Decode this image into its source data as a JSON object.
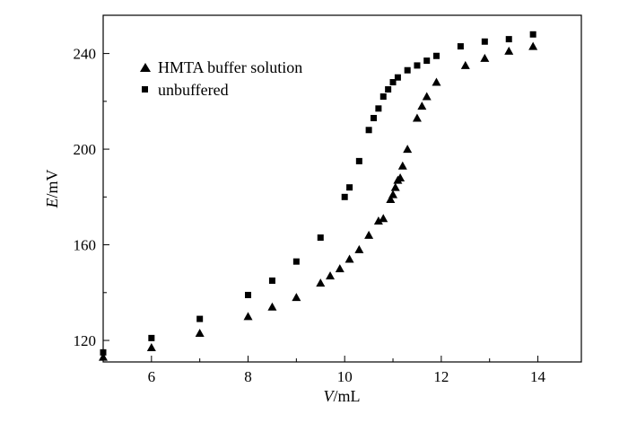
{
  "chart_data": {
    "type": "scatter",
    "xlabel_italic": "V",
    "xlabel_unit": "/mL",
    "ylabel_italic": "E",
    "ylabel_unit": "/mV",
    "xlim": [
      5,
      14.9
    ],
    "ylim": [
      111,
      256
    ],
    "xticks": [
      6,
      8,
      10,
      12,
      14
    ],
    "yticks": [
      120,
      160,
      200,
      240
    ],
    "legend_position": "top-left",
    "grid": false,
    "series": [
      {
        "name": "HMTA buffer solution",
        "marker": "triangle",
        "x": [
          5.0,
          6.0,
          7.0,
          8.0,
          8.5,
          9.0,
          9.5,
          9.7,
          9.9,
          10.1,
          10.3,
          10.5,
          10.7,
          10.8,
          10.95,
          11.0,
          11.05,
          11.1,
          11.15,
          11.2,
          11.3,
          11.5,
          11.6,
          11.7,
          11.9,
          12.5,
          12.9,
          13.4,
          13.9
        ],
        "y": [
          113,
          117,
          123,
          130,
          134,
          138,
          144,
          147,
          150,
          154,
          158,
          164,
          170,
          171,
          179,
          181,
          184,
          187,
          188,
          193,
          200,
          213,
          218,
          222,
          228,
          235,
          238,
          241,
          243
        ]
      },
      {
        "name": "unbuffered",
        "marker": "square",
        "x": [
          5.0,
          6.0,
          7.0,
          8.0,
          8.5,
          9.0,
          9.5,
          10.0,
          10.1,
          10.3,
          10.5,
          10.6,
          10.7,
          10.8,
          10.9,
          11.0,
          11.1,
          11.3,
          11.5,
          11.7,
          11.9,
          12.4,
          12.9,
          13.4,
          13.9
        ],
        "y": [
          115,
          121,
          129,
          139,
          145,
          153,
          163,
          180,
          184,
          195,
          208,
          213,
          217,
          222,
          225,
          228,
          230,
          233,
          235,
          237,
          239,
          243,
          245,
          246,
          248
        ]
      }
    ]
  }
}
